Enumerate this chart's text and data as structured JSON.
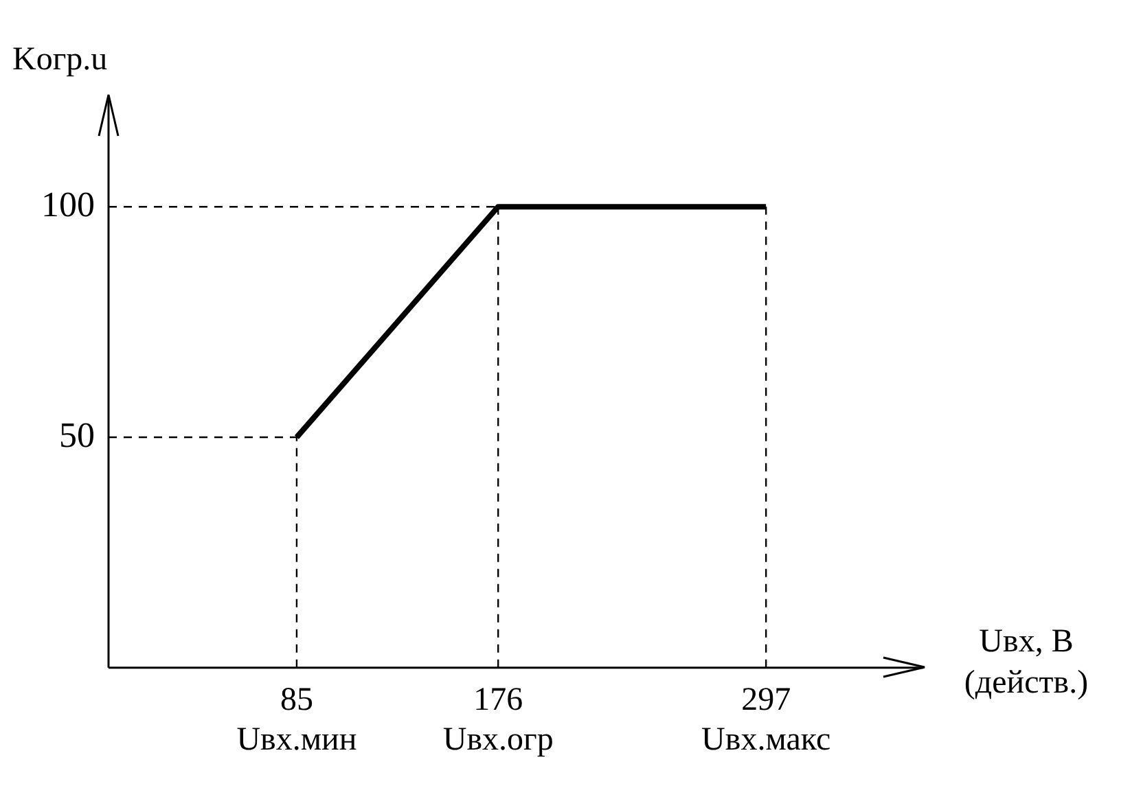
{
  "chart_data": {
    "type": "line",
    "xlabel": "Uвх, В\n(действ.)",
    "ylabel": "Kогр.u",
    "x": [
      85,
      176,
      297
    ],
    "series": [
      {
        "color": "#000000",
        "values": [
          50,
          100,
          100
        ]
      }
    ],
    "xlim": [
      0,
      368
    ],
    "ylim": [
      0,
      124
    ],
    "xticks": [
      {
        "value": 85,
        "label": "85\nUвх.мин"
      },
      {
        "value": 176,
        "label": "176\nUвх.огр"
      },
      {
        "value": 297,
        "label": "297\nUвх.макс"
      }
    ],
    "yticks": [
      50,
      100
    ],
    "ref_lines": [
      {
        "axis": "x",
        "value": 85,
        "line_style": "dashed"
      },
      {
        "axis": "x",
        "value": 176,
        "line_style": "dashed"
      },
      {
        "axis": "x",
        "value": 297,
        "line_style": "dashed"
      },
      {
        "axis": "y",
        "value": 50,
        "line_style": "dashed"
      },
      {
        "axis": "y",
        "value": 100,
        "line_style": "dashed"
      }
    ],
    "grid": false,
    "legend": false,
    "marker": "none",
    "line_style": "solid"
  }
}
